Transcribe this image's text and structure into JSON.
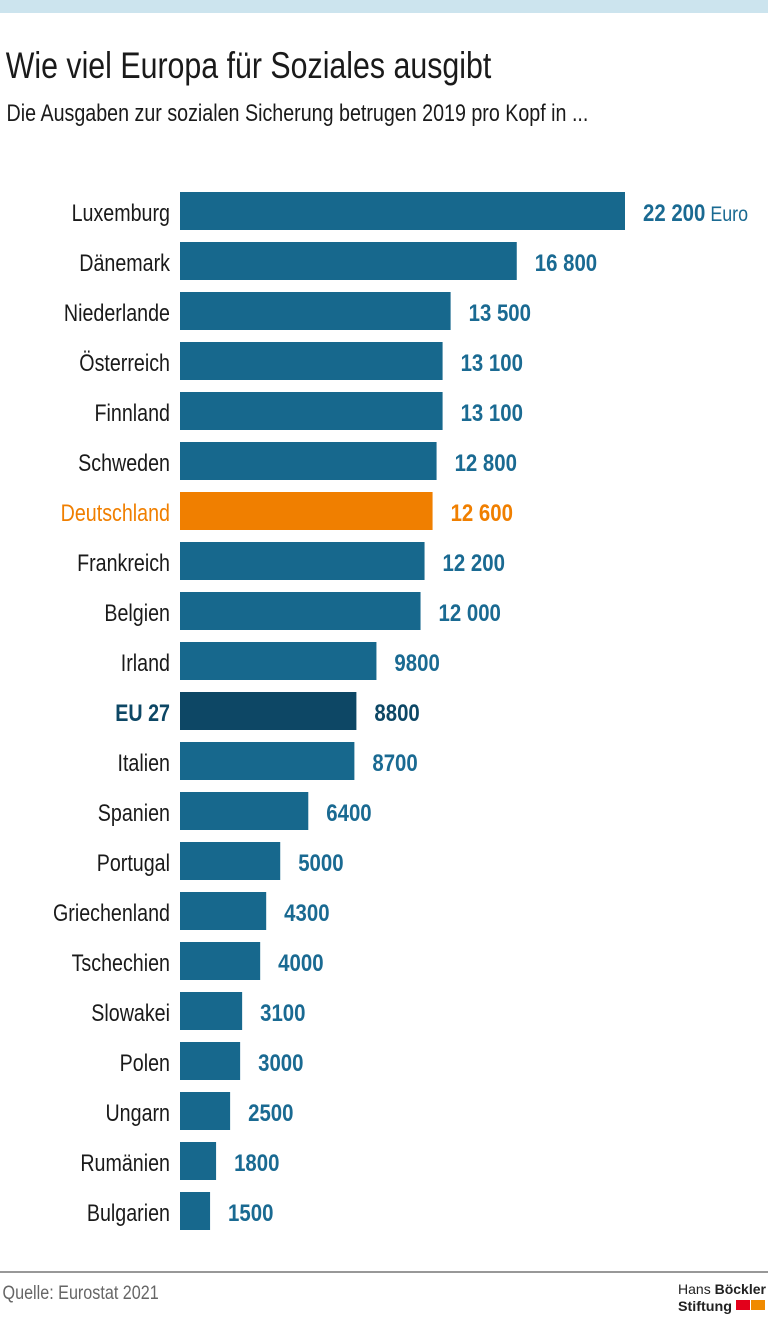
{
  "title": "Wie viel Europa für Soziales ausgibt",
  "subtitle": "Die Ausgaben zur sozialen Sicherung betrugen 2019 pro Kopf in ...",
  "source": "Quelle: Eurostat 2021",
  "logo": {
    "line1_light": "Hans",
    "line1_bold": "Böckler",
    "line2": "Stiftung",
    "colors": [
      "#e3001b",
      "#f08a00"
    ]
  },
  "colors": {
    "bar": "#17688d",
    "highlight": "#f07f00",
    "eu": "#0d4765",
    "value_text": "#1a6a92",
    "header_band": "#cce4ee"
  },
  "chart_data": {
    "type": "bar",
    "orientation": "horizontal",
    "unit": "Euro",
    "categories": [
      "Luxemburg",
      "Dänemark",
      "Niederlande",
      "Österreich",
      "Finnland",
      "Schweden",
      "Deutschland",
      "Frankreich",
      "Belgien",
      "Irland",
      "EU 27",
      "Italien",
      "Spanien",
      "Portugal",
      "Griechenland",
      "Tschechien",
      "Slowakei",
      "Polen",
      "Ungarn",
      "Rumänien",
      "Bulgarien"
    ],
    "values": [
      22200,
      16800,
      13500,
      13100,
      13100,
      12800,
      12600,
      12200,
      12000,
      9800,
      8800,
      8700,
      6400,
      5000,
      4300,
      4000,
      3100,
      3000,
      2500,
      1800,
      1500
    ],
    "value_labels": [
      "22 200",
      "16 800",
      "13 500",
      "13 100",
      "13 100",
      "12 800",
      "12 600",
      "12 200",
      "12 000",
      "9800",
      "8800",
      "8700",
      "6400",
      "5000",
      "4300",
      "4000",
      "3100",
      "3000",
      "2500",
      "1800",
      "1500"
    ],
    "highlight": {
      "Deutschland": "highlight",
      "EU 27": "eu"
    },
    "grid": false
  }
}
